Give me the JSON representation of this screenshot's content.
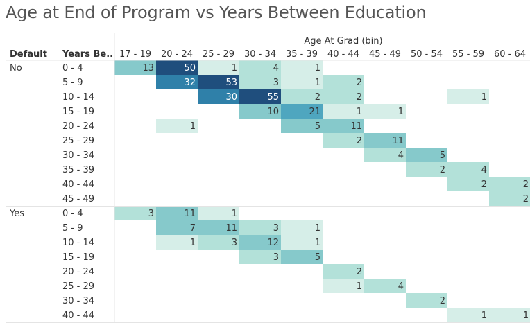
{
  "title": "Age at End of Program vs Years Between Education",
  "header": {
    "col_axis_title": "Age At Grad (bin)",
    "row_field_1": "Default",
    "row_field_2": "Years Be.."
  },
  "colors": {
    "scale": [
      "#d6eee8",
      "#b3e1d9",
      "#86c9cb",
      "#4fa6bf",
      "#2f80a9",
      "#1f4e7d"
    ],
    "text_dark": "#333333",
    "text_light": "#ffffff",
    "gridline": "#e4e4e4"
  },
  "chart_data": {
    "type": "heatmap",
    "title": "Age at End of Program vs Years Between Education",
    "x_label": "Age At Grad (bin)",
    "columns": [
      "17 - 19",
      "20 - 24",
      "25 - 29",
      "30 - 34",
      "35 - 39",
      "40 - 44",
      "45 - 49",
      "50 - 54",
      "55 - 59",
      "60 - 64"
    ],
    "groups": [
      {
        "name": "No",
        "rows": [
          {
            "label": "0 - 4",
            "values": [
              13,
              50,
              1,
              4,
              1,
              null,
              null,
              null,
              null,
              null
            ]
          },
          {
            "label": "5 - 9",
            "values": [
              null,
              32,
              53,
              3,
              1,
              2,
              null,
              null,
              null,
              null
            ]
          },
          {
            "label": "10 - 14",
            "values": [
              null,
              null,
              30,
              55,
              2,
              2,
              null,
              null,
              1,
              null
            ]
          },
          {
            "label": "15 - 19",
            "values": [
              null,
              null,
              null,
              10,
              21,
              1,
              1,
              null,
              null,
              null
            ]
          },
          {
            "label": "20 - 24",
            "values": [
              null,
              1,
              null,
              null,
              5,
              11,
              null,
              null,
              null,
              null
            ]
          },
          {
            "label": "25 - 29",
            "values": [
              null,
              null,
              null,
              null,
              null,
              2,
              11,
              null,
              null,
              null
            ]
          },
          {
            "label": "30 - 34",
            "values": [
              null,
              null,
              null,
              null,
              null,
              null,
              4,
              5,
              null,
              null
            ]
          },
          {
            "label": "35 - 39",
            "values": [
              null,
              null,
              null,
              null,
              null,
              null,
              null,
              2,
              4,
              null
            ]
          },
          {
            "label": "40 - 44",
            "values": [
              null,
              null,
              null,
              null,
              null,
              null,
              null,
              null,
              2,
              2
            ]
          },
          {
            "label": "45 - 49",
            "values": [
              null,
              null,
              null,
              null,
              null,
              null,
              null,
              null,
              null,
              2
            ]
          }
        ]
      },
      {
        "name": "Yes",
        "rows": [
          {
            "label": "0 - 4",
            "values": [
              3,
              11,
              1,
              null,
              null,
              null,
              null,
              null,
              null,
              null
            ]
          },
          {
            "label": "5 - 9",
            "values": [
              null,
              7,
              11,
              3,
              1,
              null,
              null,
              null,
              null,
              null
            ]
          },
          {
            "label": "10 - 14",
            "values": [
              null,
              1,
              3,
              12,
              1,
              null,
              null,
              null,
              null,
              null
            ]
          },
          {
            "label": "15 - 19",
            "values": [
              null,
              null,
              null,
              3,
              5,
              null,
              null,
              null,
              null,
              null
            ]
          },
          {
            "label": "20 - 24",
            "values": [
              null,
              null,
              null,
              null,
              null,
              2,
              null,
              null,
              null,
              null
            ]
          },
          {
            "label": "25 - 29",
            "values": [
              null,
              null,
              null,
              null,
              null,
              1,
              4,
              null,
              null,
              null
            ]
          },
          {
            "label": "30 - 34",
            "values": [
              null,
              null,
              null,
              null,
              null,
              null,
              null,
              2,
              null,
              null
            ]
          },
          {
            "label": "40 - 44",
            "values": [
              null,
              null,
              null,
              null,
              null,
              null,
              null,
              null,
              1,
              1
            ]
          }
        ]
      }
    ]
  }
}
